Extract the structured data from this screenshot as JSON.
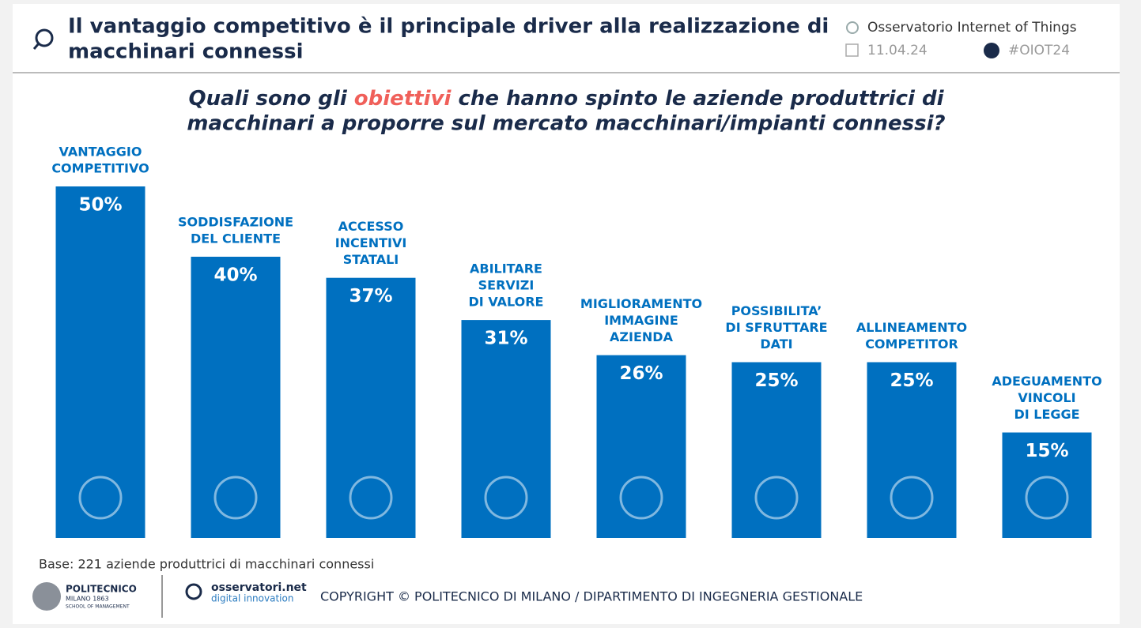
{
  "header": {
    "title": [
      "Il vantaggio competitivo è il principale driver alla realizzazione di",
      "macchinari connessi"
    ],
    "brand": "Osservatorio Internet of Things",
    "date": "11.04.24",
    "hashtag": "#OIOT24"
  },
  "chart_data": {
    "type": "bar",
    "subtitle": [
      "Quali sono gli ",
      "obiettivi",
      " che hanno spinto le aziende produttrici di",
      "macchinari a proporre sul mercato macchinari/impianti connessi?"
    ],
    "highlight_color": "#f0605a",
    "categories": [
      [
        "VANTAGGIO",
        "COMPETITIVO"
      ],
      [
        "SODDISFAZIONE",
        "DEL CLIENTE"
      ],
      [
        "ACCESSO",
        "INCENTIVI",
        "STATALI"
      ],
      [
        "ABILITARE",
        "SERVIZI",
        "DI VALORE"
      ],
      [
        "MIGLIORAMENTO",
        "IMMAGINE",
        "AZIENDA"
      ],
      [
        "POSSIBILITA’",
        "DI SFRUTTARE",
        "DATI"
      ],
      [
        "ALLINEAMENTO",
        "COMPETITOR"
      ],
      [
        "ADEGUAMENTO",
        "VINCOLI",
        "DI LEGGE"
      ]
    ],
    "values": [
      50,
      40,
      37,
      31,
      26,
      25,
      25,
      15
    ],
    "value_labels": [
      "50%",
      "40%",
      "37%",
      "31%",
      "26%",
      "25%",
      "25%",
      "15%"
    ],
    "color": "#0070c0"
  },
  "footer": {
    "base": "Base: 221 aziende produttrici di macchinari connessi",
    "logo1": [
      "POLITECNICO",
      "MILANO 1863",
      "SCHOOL OF MANAGEMENT"
    ],
    "logo2": [
      "osservatori.net",
      "digital innovation"
    ],
    "copyright": "COPYRIGHT © POLITECNICO DI MILANO / DIPARTIMENTO DI INGEGNERIA GESTIONALE"
  }
}
